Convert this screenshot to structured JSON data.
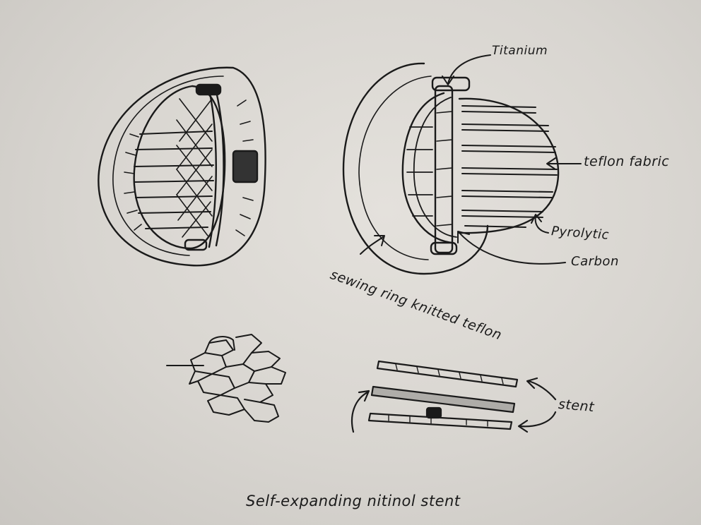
{
  "diagram": {
    "labels": {
      "titanium": "Titanium",
      "teflon_fabric": "teflon fabric",
      "pyrolytic_line1": "Pyrolytic",
      "pyrolytic_line2": "Carbon",
      "sewing_ring": "sewing ring knitted teflon",
      "stent": "stent"
    },
    "caption": "Self-expanding nitinol stent"
  },
  "colors": {
    "paper": "#dcd9d4",
    "ink": "#1a1a1a"
  }
}
